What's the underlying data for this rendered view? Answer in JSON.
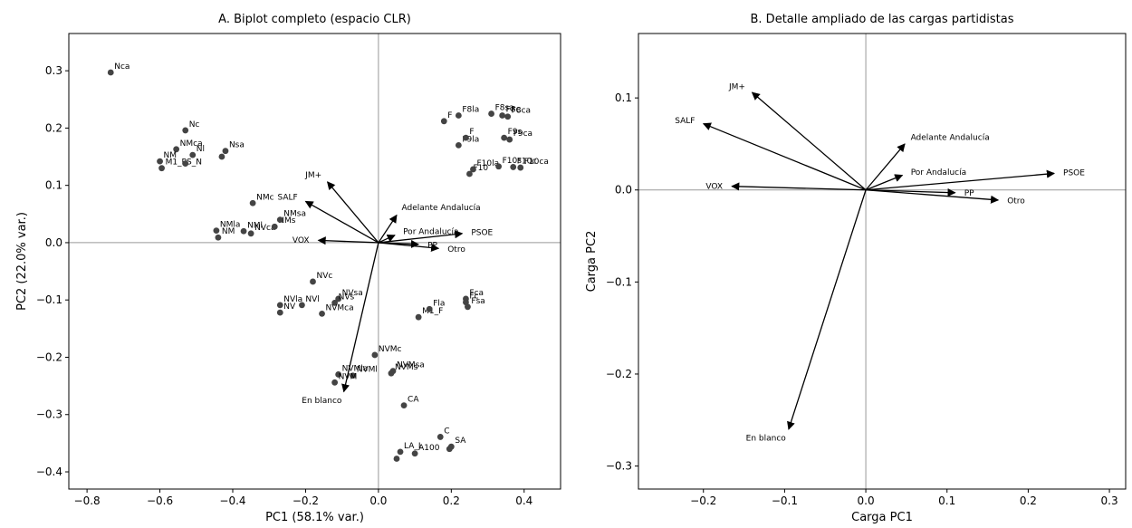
{
  "chart_data": [
    {
      "type": "scatter",
      "title": "A. Biplot completo (espacio CLR)",
      "xlabel": "PC1 (58.1% var.)",
      "ylabel": "PC2 (22.0% var.)",
      "xlim": [
        -0.85,
        0.5
      ],
      "ylim": [
        -0.43,
        0.365
      ],
      "xticks": [
        -0.8,
        -0.6,
        -0.4,
        -0.2,
        0.0,
        0.2,
        0.4
      ],
      "xtick_labels": [
        "−0.8",
        "−0.6",
        "−0.4",
        "−0.2",
        "0.0",
        "0.2",
        "0.4"
      ],
      "yticks": [
        -0.4,
        -0.3,
        -0.2,
        -0.1,
        0.0,
        0.1,
        0.2,
        0.3
      ],
      "ytick_labels": [
        "−0.4",
        "−0.3",
        "−0.2",
        "−0.1",
        "0.0",
        "0.1",
        "0.2",
        "0.3"
      ],
      "reference_lines": {
        "x": 0,
        "y": 0
      },
      "point_color": "#444444",
      "arrow_color": "#000000",
      "points": [
        {
          "x": -0.735,
          "y": 0.297,
          "label": "Nca"
        },
        {
          "x": -0.53,
          "y": 0.196,
          "label": "Nc"
        },
        {
          "x": -0.555,
          "y": 0.163,
          "label": "NMca"
        },
        {
          "x": -0.51,
          "y": 0.153,
          "label": "Nl"
        },
        {
          "x": -0.6,
          "y": 0.142,
          "label": "NM"
        },
        {
          "x": -0.595,
          "y": 0.13,
          "label": "M1_PS_N"
        },
        {
          "x": -0.53,
          "y": 0.138,
          "label": ""
        },
        {
          "x": -0.43,
          "y": 0.15,
          "label": ""
        },
        {
          "x": -0.42,
          "y": 0.16,
          "label": "Nsa"
        },
        {
          "x": -0.345,
          "y": 0.069,
          "label": "NMc"
        },
        {
          "x": -0.445,
          "y": 0.021,
          "label": "NMla"
        },
        {
          "x": -0.44,
          "y": 0.009,
          "label": "NM"
        },
        {
          "x": -0.37,
          "y": 0.02,
          "label": "NMl"
        },
        {
          "x": -0.35,
          "y": 0.016,
          "label": "NVca"
        },
        {
          "x": -0.285,
          "y": 0.028,
          "label": "NMs"
        },
        {
          "x": -0.27,
          "y": 0.04,
          "label": "NMsa"
        },
        {
          "x": -0.18,
          "y": -0.068,
          "label": "NVc"
        },
        {
          "x": -0.27,
          "y": -0.109,
          "label": "NVla"
        },
        {
          "x": -0.27,
          "y": -0.122,
          "label": "NV"
        },
        {
          "x": -0.21,
          "y": -0.109,
          "label": "NVl"
        },
        {
          "x": -0.11,
          "y": -0.098,
          "label": "NVsa"
        },
        {
          "x": -0.12,
          "y": -0.105,
          "label": "NVs"
        },
        {
          "x": -0.155,
          "y": -0.124,
          "label": "NVMca"
        },
        {
          "x": -0.01,
          "y": -0.196,
          "label": "NVMc"
        },
        {
          "x": 0.04,
          "y": -0.224,
          "label": "NVMsa"
        },
        {
          "x": 0.035,
          "y": -0.228,
          "label": "NVMs"
        },
        {
          "x": -0.11,
          "y": -0.23,
          "label": "NVMla"
        },
        {
          "x": -0.07,
          "y": -0.232,
          "label": "NVMl"
        },
        {
          "x": -0.12,
          "y": -0.244,
          "label": "NVM"
        },
        {
          "x": 0.07,
          "y": -0.284,
          "label": "CA"
        },
        {
          "x": 0.17,
          "y": -0.339,
          "label": "C"
        },
        {
          "x": 0.2,
          "y": -0.356,
          "label": "SA"
        },
        {
          "x": 0.195,
          "y": -0.36,
          "label": ""
        },
        {
          "x": 0.06,
          "y": -0.365,
          "label": "LA_L"
        },
        {
          "x": 0.1,
          "y": -0.368,
          "label": "A100"
        },
        {
          "x": 0.05,
          "y": -0.377,
          "label": ""
        },
        {
          "x": 0.11,
          "y": -0.13,
          "label": "M1_F"
        },
        {
          "x": 0.14,
          "y": -0.116,
          "label": "Fla"
        },
        {
          "x": 0.24,
          "y": -0.098,
          "label": "Fca"
        },
        {
          "x": 0.24,
          "y": -0.104,
          "label": "Fc"
        },
        {
          "x": 0.245,
          "y": -0.112,
          "label": "Fsa"
        },
        {
          "x": 0.22,
          "y": 0.222,
          "label": "F8la"
        },
        {
          "x": 0.31,
          "y": 0.225,
          "label": "F8sa"
        },
        {
          "x": 0.34,
          "y": 0.222,
          "label": "F8c"
        },
        {
          "x": 0.355,
          "y": 0.22,
          "label": "F8ca"
        },
        {
          "x": 0.18,
          "y": 0.212,
          "label": "F"
        },
        {
          "x": 0.22,
          "y": 0.17,
          "label": "F9la"
        },
        {
          "x": 0.24,
          "y": 0.183,
          "label": "F"
        },
        {
          "x": 0.345,
          "y": 0.183,
          "label": "F9s"
        },
        {
          "x": 0.36,
          "y": 0.18,
          "label": "F9ca"
        },
        {
          "x": 0.25,
          "y": 0.12,
          "label": "F10"
        },
        {
          "x": 0.26,
          "y": 0.128,
          "label": "F10la"
        },
        {
          "x": 0.33,
          "y": 0.133,
          "label": "F10s"
        },
        {
          "x": 0.37,
          "y": 0.132,
          "label": "F10c"
        },
        {
          "x": 0.39,
          "y": 0.131,
          "label": "F10ca"
        }
      ],
      "vectors": [
        {
          "name": "JM+",
          "x": -0.14,
          "y": 0.106
        },
        {
          "name": "SALF",
          "x": -0.2,
          "y": 0.072
        },
        {
          "name": "VOX",
          "x": -0.165,
          "y": 0.004
        },
        {
          "name": "Adelante Andalucía",
          "x": 0.05,
          "y": 0.048
        },
        {
          "name": "Por Andalucía",
          "x": 0.045,
          "y": 0.013
        },
        {
          "name": "PSOE",
          "x": 0.23,
          "y": 0.016
        },
        {
          "name": "PP",
          "x": 0.11,
          "y": -0.003
        },
        {
          "name": "Otro",
          "x": 0.165,
          "y": -0.01
        },
        {
          "name": "En blanco",
          "x": -0.095,
          "y": -0.26
        }
      ]
    },
    {
      "type": "scatter",
      "title": "B. Detalle ampliado de las cargas partidistas",
      "xlabel": "Carga PC1",
      "ylabel": "Carga PC2",
      "xlim": [
        -0.28,
        0.32
      ],
      "ylim": [
        -0.325,
        0.17
      ],
      "xticks": [
        -0.2,
        -0.1,
        0.0,
        0.1,
        0.2,
        0.3
      ],
      "xtick_labels": [
        "−0.2",
        "−0.1",
        "0.0",
        "0.1",
        "0.2",
        "0.3"
      ],
      "yticks": [
        -0.3,
        -0.2,
        -0.1,
        0.0,
        0.1
      ],
      "ytick_labels": [
        "−0.3",
        "−0.2",
        "−0.1",
        "0.0",
        "0.1"
      ],
      "reference_lines": {
        "x": 0,
        "y": 0
      },
      "arrow_color": "#000000",
      "vectors": [
        {
          "name": "JM+",
          "x": -0.14,
          "y": 0.106
        },
        {
          "name": "SALF",
          "x": -0.2,
          "y": 0.072
        },
        {
          "name": "VOX",
          "x": -0.165,
          "y": 0.004
        },
        {
          "name": "Adelante Andalucía",
          "x": 0.048,
          "y": 0.05
        },
        {
          "name": "Por Andalucía",
          "x": 0.045,
          "y": 0.016
        },
        {
          "name": "PSOE",
          "x": 0.232,
          "y": 0.018
        },
        {
          "name": "PP",
          "x": 0.11,
          "y": -0.003
        },
        {
          "name": "Otro",
          "x": 0.163,
          "y": -0.011
        },
        {
          "name": "En blanco",
          "x": -0.095,
          "y": -0.26
        }
      ]
    }
  ]
}
